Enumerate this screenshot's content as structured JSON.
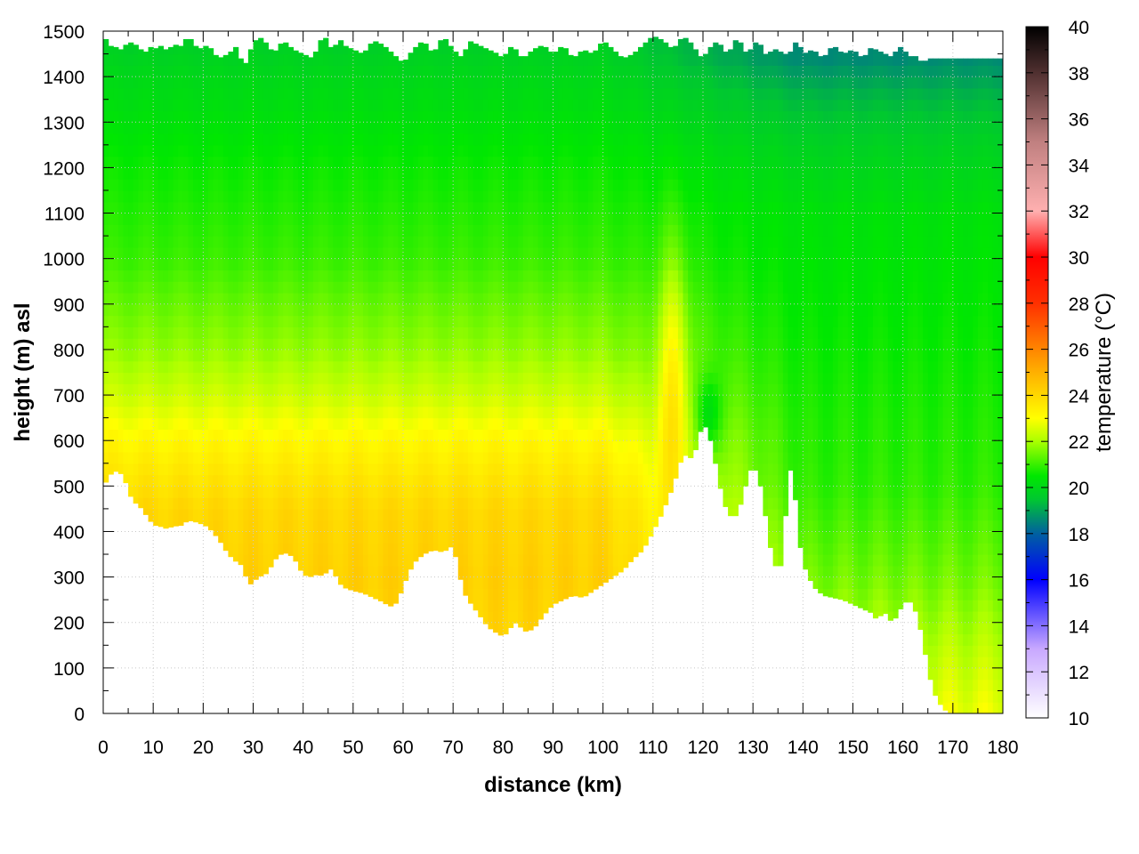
{
  "chart_data": {
    "type": "heatmap",
    "title": "",
    "xlabel": "distance (km)",
    "ylabel": "height (m) asl",
    "colorbar_label": "temperature (°C)",
    "xlim": [
      0,
      180
    ],
    "ylim": [
      0,
      1500
    ],
    "clim": [
      10,
      40
    ],
    "x_ticks": [
      0,
      10,
      20,
      30,
      40,
      50,
      60,
      70,
      80,
      90,
      100,
      110,
      120,
      130,
      140,
      150,
      160,
      170,
      180
    ],
    "y_ticks": [
      0,
      100,
      200,
      300,
      400,
      500,
      600,
      700,
      800,
      900,
      1000,
      1100,
      1200,
      1300,
      1400,
      1500
    ],
    "c_ticks": [
      10,
      12,
      14,
      16,
      18,
      20,
      22,
      24,
      26,
      28,
      30,
      32,
      34,
      36,
      38,
      40
    ],
    "grid": true,
    "colormap": [
      {
        "t": 10,
        "color": "#ffffff"
      },
      {
        "t": 13,
        "color": "#c8a8ff"
      },
      {
        "t": 16,
        "color": "#0000ff"
      },
      {
        "t": 18,
        "color": "#0060a0"
      },
      {
        "t": 19.5,
        "color": "#00c830"
      },
      {
        "t": 20.5,
        "color": "#00e800"
      },
      {
        "t": 22,
        "color": "#aaff00"
      },
      {
        "t": 23,
        "color": "#ffff00"
      },
      {
        "t": 25,
        "color": "#ffb000"
      },
      {
        "t": 28,
        "color": "#ff3000"
      },
      {
        "t": 30,
        "color": "#ff0000"
      },
      {
        "t": 32,
        "color": "#ffb0b0"
      },
      {
        "t": 35,
        "color": "#c08080"
      },
      {
        "t": 38,
        "color": "#503030"
      },
      {
        "t": 40,
        "color": "#000000"
      }
    ],
    "terrain": {
      "x": [
        0,
        2,
        3,
        4,
        5,
        6,
        7,
        8,
        9,
        10,
        12,
        13,
        14,
        15,
        17,
        19,
        21,
        23,
        25,
        27,
        28,
        29,
        31,
        33,
        34,
        36,
        38,
        40,
        42,
        43,
        44,
        45,
        46,
        47,
        48,
        50,
        52,
        54,
        56,
        57,
        58,
        59,
        60,
        62,
        64,
        66,
        68,
        70,
        71,
        72,
        73,
        75,
        77,
        79,
        80,
        81,
        82,
        83,
        84,
        86,
        88,
        90,
        92,
        94,
        96,
        98,
        100,
        102,
        104,
        106,
        108,
        110,
        112,
        114,
        116,
        118,
        119,
        120,
        121,
        122,
        123,
        124,
        125,
        126,
        127,
        128,
        129,
        130,
        131,
        132,
        133,
        134,
        135,
        136,
        137,
        138,
        139,
        140,
        142,
        144,
        146,
        148,
        150,
        152,
        154,
        155,
        156,
        157,
        158,
        160,
        161,
        162,
        163,
        164,
        165,
        166,
        167,
        168,
        170,
        172,
        174,
        176,
        178,
        180
      ],
      "height": [
        500,
        535,
        530,
        525,
        490,
        465,
        460,
        445,
        430,
        415,
        410,
        405,
        415,
        410,
        425,
        420,
        410,
        385,
        350,
        330,
        325,
        280,
        300,
        310,
        335,
        355,
        345,
        305,
        300,
        310,
        298,
        320,
        315,
        290,
        278,
        270,
        265,
        255,
        245,
        238,
        235,
        250,
        280,
        330,
        350,
        360,
        355,
        370,
        320,
        270,
        250,
        220,
        190,
        175,
        170,
        180,
        198,
        200,
        180,
        185,
        215,
        240,
        250,
        260,
        255,
        270,
        285,
        300,
        315,
        340,
        360,
        400,
        445,
        500,
        570,
        560,
        600,
        640,
        620,
        580,
        520,
        470,
        440,
        430,
        440,
        480,
        520,
        550,
        520,
        480,
        390,
        340,
        310,
        340,
        530,
        540,
        400,
        330,
        280,
        260,
        255,
        250,
        240,
        230,
        220,
        200,
        230,
        210,
        200,
        240,
        250,
        240,
        210,
        160,
        100,
        50,
        30,
        10,
        0,
        0,
        0,
        0,
        0,
        0
      ],
      "top": [
        1490,
        1460,
        1470,
        1450,
        1490,
        1460,
        1480,
        1440,
        1470,
        1460,
        1470,
        1450,
        1480,
        1460,
        1490,
        1460,
        1470,
        1440,
        1450,
        1470,
        1410,
        1450,
        1490,
        1470,
        1450,
        1480,
        1460,
        1450,
        1440,
        1470,
        1490,
        1480,
        1450,
        1490,
        1470,
        1460,
        1450,
        1480,
        1470,
        1460,
        1450,
        1440,
        1430,
        1460,
        1480,
        1450,
        1490,
        1460,
        1450,
        1440,
        1480,
        1470,
        1460,
        1450,
        1440,
        1460,
        1470,
        1450,
        1440,
        1460,
        1470,
        1450,
        1470,
        1440,
        1460,
        1450,
        1480,
        1460,
        1440,
        1450,
        1470,
        1490,
        1480,
        1460,
        1490,
        1470,
        1450,
        1440,
        1460,
        1470,
        1480,
        1460,
        1450,
        1470,
        1490,
        1460,
        1450,
        1470,
        1480,
        1460,
        1440,
        1470,
        1450,
        1460,
        1440,
        1470,
        1480,
        1450,
        1460,
        1440,
        1470,
        1450,
        1460,
        1440,
        1470,
        1450,
        1460,
        1440,
        1450,
        1470,
        1440,
        1450,
        1440,
        1430,
        1440,
        1440,
        1440,
        1440,
        1440,
        1440,
        1440,
        1440,
        1440,
        1440
      ]
    },
    "temperature_model": {
      "inversion_profile": [
        {
          "height": 0,
          "temp": 23.8
        },
        {
          "height": 300,
          "temp": 24.2
        },
        {
          "height": 450,
          "temp": 24.0
        },
        {
          "height": 600,
          "temp": 23.2
        },
        {
          "height": 700,
          "temp": 22.4
        },
        {
          "height": 800,
          "temp": 21.8
        },
        {
          "height": 1000,
          "temp": 21.0
        },
        {
          "height": 1200,
          "temp": 20.6
        },
        {
          "height": 1400,
          "temp": 20.0
        },
        {
          "height": 1500,
          "temp": 19.6
        }
      ],
      "east_profile": [
        {
          "height": 0,
          "temp": 22.8
        },
        {
          "height": 300,
          "temp": 21.5
        },
        {
          "height": 500,
          "temp": 20.9
        },
        {
          "height": 800,
          "temp": 20.6
        },
        {
          "height": 1100,
          "temp": 20.3
        },
        {
          "height": 1250,
          "temp": 19.8
        },
        {
          "height": 1350,
          "temp": 19.3
        },
        {
          "height": 1440,
          "temp": 18.6
        }
      ],
      "warm_plume": {
        "x": 114,
        "height": 750,
        "dx": 3,
        "dh": 280,
        "amp": 1.8
      },
      "cool_plume": {
        "x": 121,
        "height": 650,
        "dx": 2.5,
        "dh": 90,
        "amp": -1.6
      }
    }
  }
}
